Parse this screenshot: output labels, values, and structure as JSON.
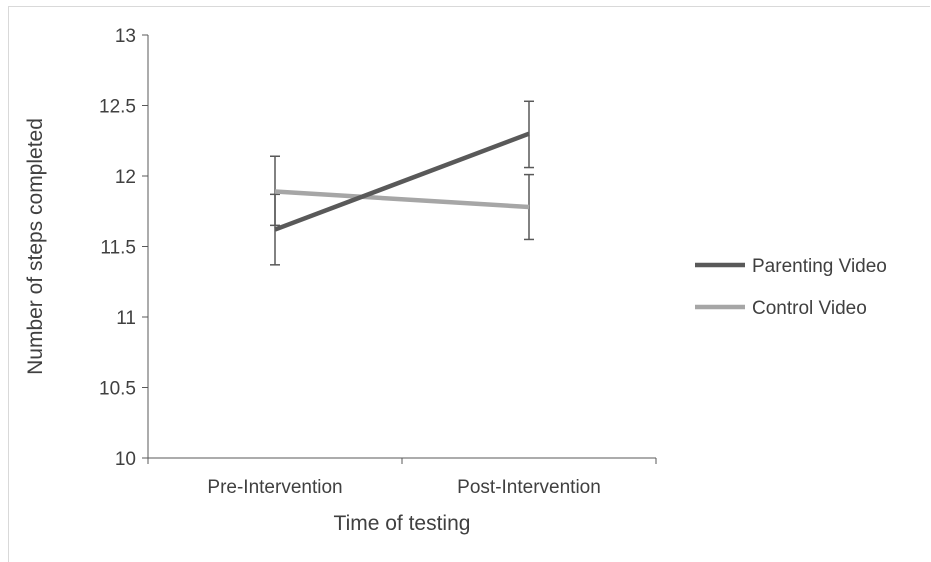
{
  "chart_data": {
    "type": "line",
    "categories": [
      "Pre-Intervention",
      "Post-Intervention"
    ],
    "xlabel": "Time of testing",
    "ylabel": "Number of steps completed",
    "ylim": [
      10,
      13
    ],
    "yticks": [
      10,
      10.5,
      11,
      11.5,
      12,
      12.5,
      13
    ],
    "ytick_labels": [
      "10",
      "10.5",
      "11",
      "11.5",
      "12",
      "12.5",
      "13"
    ],
    "grid": false,
    "legend_position": "right",
    "series": [
      {
        "name": "Parenting Video",
        "values": [
          11.62,
          12.3
        ],
        "error_low": [
          11.37,
          12.06
        ],
        "error_high": [
          11.87,
          12.53
        ],
        "color": "#595959"
      },
      {
        "name": "Control Video",
        "values": [
          11.89,
          11.78
        ],
        "error_low": [
          11.65,
          11.55
        ],
        "error_high": [
          12.14,
          12.01
        ],
        "color": "#a6a6a6"
      }
    ]
  }
}
